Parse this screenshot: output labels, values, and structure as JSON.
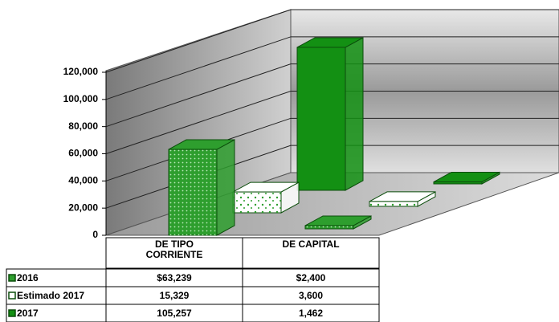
{
  "chart_data": {
    "type": "bar",
    "categories": [
      "DE TIPO CORRIENTE",
      "DE CAPITAL"
    ],
    "series": [
      {
        "name": "2016",
        "color": "#2e9e2e",
        "values": [
          63239,
          2400
        ],
        "value_labels": [
          "$63,239",
          "$2,400"
        ]
      },
      {
        "name": "Estimado 2017",
        "color": "#ffffff",
        "values": [
          15329,
          3600
        ],
        "value_labels": [
          "15,329",
          "3,600"
        ]
      },
      {
        "name": "2017",
        "color": "#139013",
        "values": [
          105257,
          1462
        ],
        "value_labels": [
          "105,257",
          "1,462"
        ]
      }
    ],
    "ylim": [
      0,
      120000
    ],
    "yticks": [
      0,
      {
        "value": 20000,
        "label": "20,000"
      },
      {
        "value": 40000,
        "label": "40,000"
      },
      {
        "value": 60000,
        "label": "60,000"
      },
      {
        "value": 80000,
        "label": "80,000"
      },
      {
        "value": 100000,
        "label": "100,000"
      },
      {
        "value": 120000,
        "label": "120,000"
      }
    ],
    "grid": true
  }
}
